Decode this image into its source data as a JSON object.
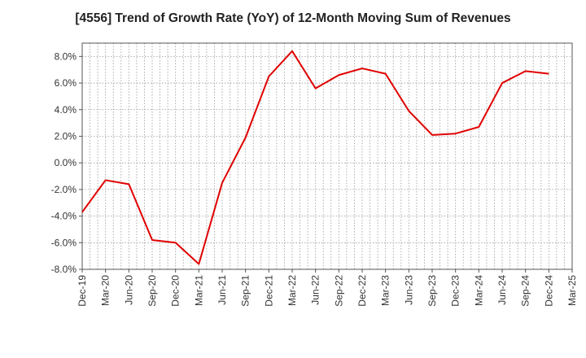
{
  "chart_data": {
    "type": "line",
    "title": "[4556]  Trend of Growth Rate (YoY) of 12-Month Moving Sum of Revenues",
    "xlabel": "",
    "ylabel": "",
    "y_unit": "%",
    "ylim": [
      -8.0,
      9.0
    ],
    "yticks": [
      -8.0,
      -6.0,
      -4.0,
      -2.0,
      0.0,
      2.0,
      4.0,
      6.0,
      8.0
    ],
    "ytick_labels": [
      "-8.0%",
      "-6.0%",
      "-4.0%",
      "-2.0%",
      "0.0%",
      "2.0%",
      "4.0%",
      "6.0%",
      "8.0%"
    ],
    "xlim": [
      "2019-12",
      "2025-03"
    ],
    "xticks": [
      "2019-12",
      "2020-03",
      "2020-06",
      "2020-09",
      "2020-12",
      "2021-03",
      "2021-06",
      "2021-09",
      "2021-12",
      "2022-03",
      "2022-06",
      "2022-09",
      "2022-12",
      "2023-03",
      "2023-06",
      "2023-09",
      "2023-12",
      "2024-03",
      "2024-06",
      "2024-09",
      "2024-12",
      "2025-03"
    ],
    "xtick_labels": [
      "Dec-19",
      "Mar-20",
      "Jun-20",
      "Sep-20",
      "Dec-20",
      "Mar-21",
      "Jun-21",
      "Sep-21",
      "Dec-21",
      "Mar-22",
      "Jun-22",
      "Sep-22",
      "Dec-22",
      "Mar-23",
      "Jun-23",
      "Sep-23",
      "Dec-23",
      "Mar-24",
      "Jun-24",
      "Sep-24",
      "Dec-24",
      "Mar-25"
    ],
    "grid": true,
    "line_color": "#e00000",
    "series": [
      {
        "x": [
          "2019-12",
          "2020-03",
          "2020-06",
          "2020-09",
          "2020-12",
          "2021-03",
          "2021-06",
          "2021-09",
          "2021-12",
          "2022-03",
          "2022-06",
          "2022-09",
          "2022-12",
          "2023-03",
          "2023-06",
          "2023-09",
          "2023-12",
          "2024-03",
          "2024-06",
          "2024-09",
          "2024-12"
        ],
        "values": [
          -3.7,
          -1.3,
          -1.6,
          -5.8,
          -6.0,
          -7.6,
          -1.5,
          1.9,
          6.5,
          8.4,
          5.6,
          6.6,
          7.1,
          6.7,
          3.9,
          2.1,
          2.2,
          2.7,
          6.0,
          6.9,
          6.7
        ]
      }
    ]
  }
}
